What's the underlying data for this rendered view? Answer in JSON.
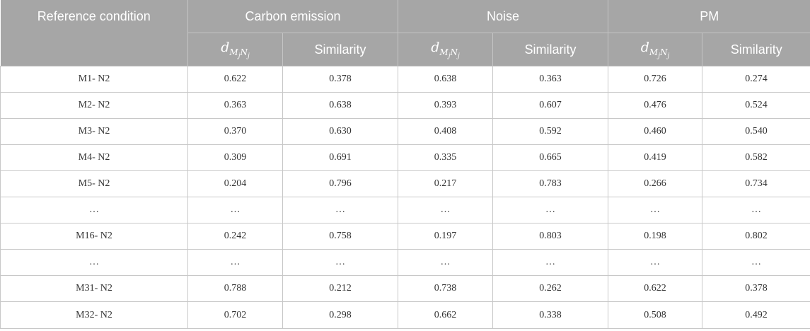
{
  "header": {
    "reference_condition": "Reference condition",
    "groups": [
      "Carbon emission",
      "Noise",
      "PM"
    ],
    "sub": {
      "d_symbol": "d",
      "d_sub_M": "M",
      "d_sub_j1": "j",
      "d_sub_N": "N",
      "d_sub_j2": "j",
      "similarity": "Similarity"
    }
  },
  "rows": [
    [
      "M1- N2",
      "0.622",
      "0.378",
      "0.638",
      "0.363",
      "0.726",
      "0.274"
    ],
    [
      "M2- N2",
      "0.363",
      "0.638",
      "0.393",
      "0.607",
      "0.476",
      "0.524"
    ],
    [
      "M3- N2",
      "0.370",
      "0.630",
      "0.408",
      "0.592",
      "0.460",
      "0.540"
    ],
    [
      "M4- N2",
      "0.309",
      "0.691",
      "0.335",
      "0.665",
      "0.419",
      "0.582"
    ],
    [
      "M5- N2",
      "0.204",
      "0.796",
      "0.217",
      "0.783",
      "0.266",
      "0.734"
    ],
    [
      "…",
      "…",
      "…",
      "…",
      "…",
      "…",
      "…"
    ],
    [
      "M16- N2",
      "0.242",
      "0.758",
      "0.197",
      "0.803",
      "0.198",
      "0.802"
    ],
    [
      "…",
      "…",
      "…",
      "…",
      "…",
      "…",
      "…"
    ],
    [
      "M31- N2",
      "0.788",
      "0.212",
      "0.738",
      "0.262",
      "0.622",
      "0.378"
    ],
    [
      "M32- N2",
      "0.702",
      "0.298",
      "0.662",
      "0.338",
      "0.508",
      "0.492"
    ]
  ]
}
